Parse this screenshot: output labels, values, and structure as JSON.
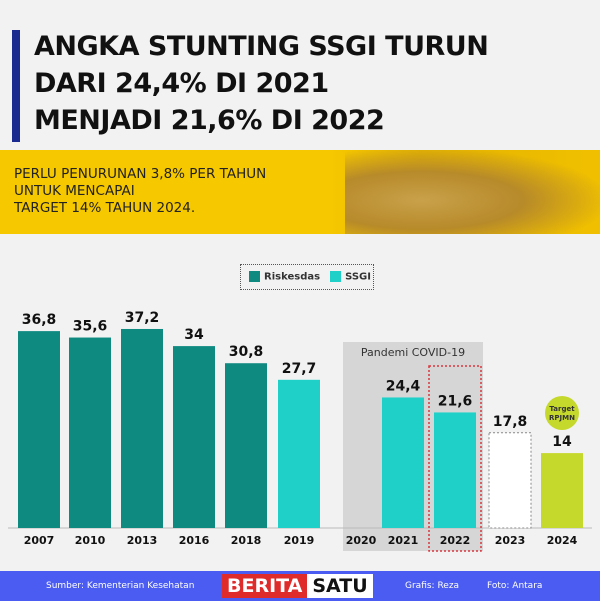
{
  "title_lines": [
    "ANGKA STUNTING SSGI TURUN",
    "DARI 24,4% DI 2021",
    "MENJADI 21,6% DI 2022"
  ],
  "subtitle_lines": [
    "PERLU PENURUNAN 3,8% PER TAHUN",
    "UNTUK MENCAPAI",
    "TARGET 14% TAHUN 2024."
  ],
  "footer": {
    "source": "Sumber: Kementerian Kesehatan",
    "logo_left": "BERITA",
    "logo_right": "SATU",
    "graphic": "Grafis: Reza",
    "photo": "Foto: Antara"
  },
  "chart_data": {
    "type": "bar",
    "categories": [
      "2007",
      "2010",
      "2013",
      "2016",
      "2018",
      "2019",
      "2020",
      "2021",
      "2022",
      "2023",
      "2024"
    ],
    "values": [
      36.8,
      35.6,
      37.2,
      34,
      30.8,
      27.7,
      null,
      24.4,
      21.6,
      17.8,
      14
    ],
    "labels": [
      "36,8",
      "35,6",
      "37,2",
      "34",
      "30,8",
      "27,7",
      "",
      "24,4",
      "21,6",
      "17,8",
      "14"
    ],
    "kinds": [
      "Riskesdas",
      "Riskesdas",
      "Riskesdas",
      "Riskesdas",
      "Riskesdas",
      "SSGI",
      "none",
      "SSGI",
      "SSGI",
      "projection",
      "target"
    ],
    "legend": [
      {
        "name": "Riskesdas",
        "color": "#0e8a80"
      },
      {
        "name": "SSGI",
        "color": "#1fd0c8"
      }
    ],
    "legend_position": "top-center",
    "annotations": {
      "covid_band": "Pandemi COVID-19",
      "covid_years": [
        "2020",
        "2021",
        "2022"
      ],
      "highlight": "2022",
      "target_badge": [
        "Target",
        "RPJMN"
      ]
    },
    "colors": {
      "Riskesdas": "#0e8a80",
      "SSGI": "#1fd0c8",
      "target": "#c5d82c",
      "projection": "#ffffff",
      "highlight": "#d9363e"
    },
    "ylim": [
      0,
      40
    ],
    "grid": false
  }
}
